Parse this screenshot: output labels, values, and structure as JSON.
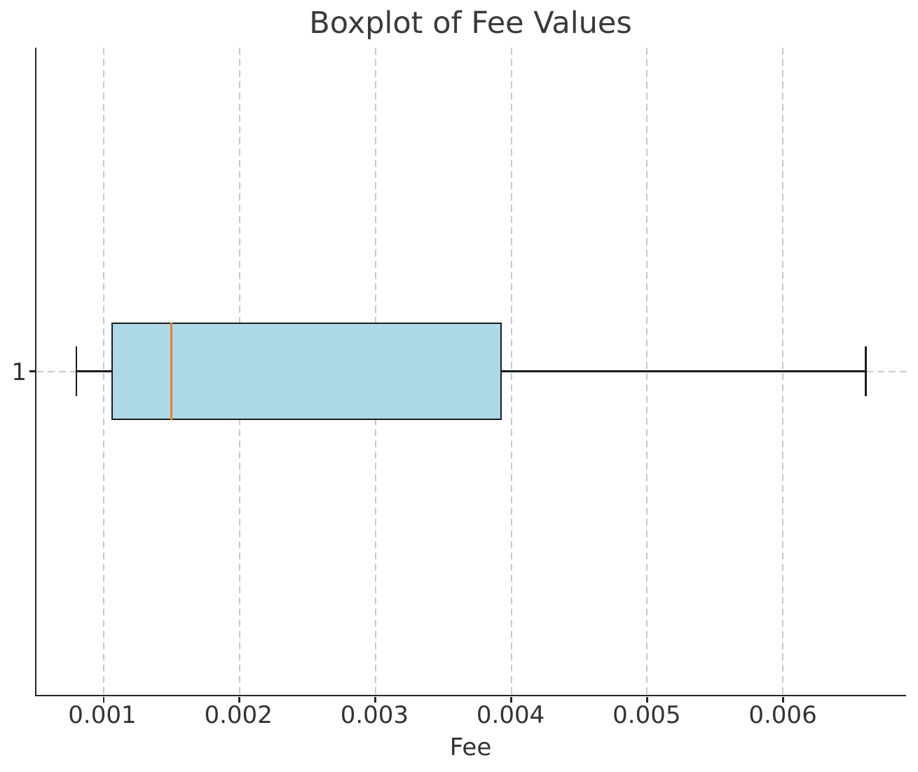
{
  "chart_data": {
    "type": "boxplot",
    "orientation": "horizontal",
    "title": "Boxplot of Fee Values",
    "xlabel": "Fee",
    "ylabel": "",
    "categories": [
      "1"
    ],
    "series": [
      {
        "name": "Fee",
        "category": "1",
        "whisker_low": 0.0008,
        "q1": 0.00106,
        "median": 0.0015,
        "q3": 0.00393,
        "whisker_high": 0.00661,
        "outliers": []
      }
    ],
    "x_ticks": [
      0.001,
      0.002,
      0.003,
      0.004,
      0.005,
      0.006
    ],
    "x_tick_labels": [
      "0.001",
      "0.002",
      "0.003",
      "0.004",
      "0.005",
      "0.006"
    ],
    "xlim": [
      0.000506,
      0.006906
    ],
    "grid": {
      "vertical_at_ticks": true,
      "horizontal_at_category": true,
      "style": "dashed",
      "color": "#c9c9c9"
    },
    "legend": null,
    "colors": {
      "box_fill": "#add8e6",
      "box_edge": "#1c1c1c",
      "median": "#ee7d2e",
      "whisker": "#1c1c1c",
      "spine": "#262626",
      "text": "#333333",
      "title_text": "#3a3a3a",
      "background": "#ffffff"
    },
    "layout": {
      "box_center_frac": 0.5,
      "box_height_frac": 0.15,
      "cap_height_frac": 0.078
    }
  }
}
